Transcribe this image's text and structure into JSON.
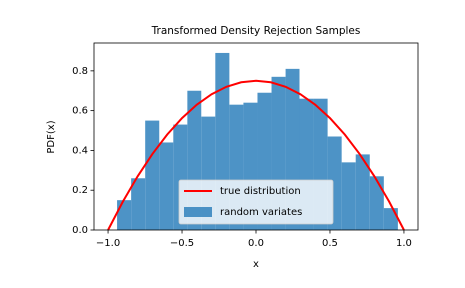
{
  "chart_data": {
    "type": "histogram",
    "title": "Transformed Density Rejection Samples",
    "xlabel": "x",
    "ylabel": "PDF(x)",
    "series": [
      {
        "name": "true distribution",
        "type": "line",
        "color": "#ff0000",
        "x": [
          -1.0,
          -0.9,
          -0.8,
          -0.7,
          -0.6,
          -0.5,
          -0.4,
          -0.3,
          -0.2,
          -0.1,
          0.0,
          0.1,
          0.2,
          0.3,
          0.4,
          0.5,
          0.6,
          0.7,
          0.8,
          0.9,
          1.0
        ],
        "values": [
          0,
          0.1425,
          0.27,
          0.3825,
          0.48,
          0.5625,
          0.63,
          0.6825,
          0.72,
          0.7425,
          0.75,
          0.7425,
          0.72,
          0.6825,
          0.63,
          0.5625,
          0.48,
          0.3825,
          0.27,
          0.1425,
          0
        ]
      },
      {
        "name": "random variates",
        "type": "histogram",
        "color": "#3a87c0",
        "bins": [
          -0.939,
          -0.844,
          -0.749,
          -0.654,
          -0.559,
          -0.464,
          -0.37,
          -0.275,
          -0.18,
          -0.085,
          0.01,
          0.105,
          0.2,
          0.294,
          0.389,
          0.484,
          0.579,
          0.674,
          0.769,
          0.864,
          0.959
        ],
        "values": [
          0.15,
          0.26,
          0.55,
          0.44,
          0.53,
          0.7,
          0.57,
          0.89,
          0.63,
          0.64,
          0.69,
          0.77,
          0.81,
          0.66,
          0.66,
          0.47,
          0.34,
          0.38,
          0.27,
          0.11
        ]
      }
    ],
    "xlim": [
      -1.095,
      1.095
    ],
    "ylim": [
      0,
      0.94
    ],
    "xticks": [
      {
        "value": -1.0,
        "label": "−1.0"
      },
      {
        "value": -0.5,
        "label": "−0.5"
      },
      {
        "value": 0,
        "label": "0.0"
      },
      {
        "value": 0.5,
        "label": "0.5"
      },
      {
        "value": 1.0,
        "label": "1.0"
      }
    ],
    "yticks": [
      {
        "value": 0,
        "label": "0.0"
      },
      0.2,
      0.4,
      0.6,
      0.8
    ],
    "legend": "lower center"
  }
}
